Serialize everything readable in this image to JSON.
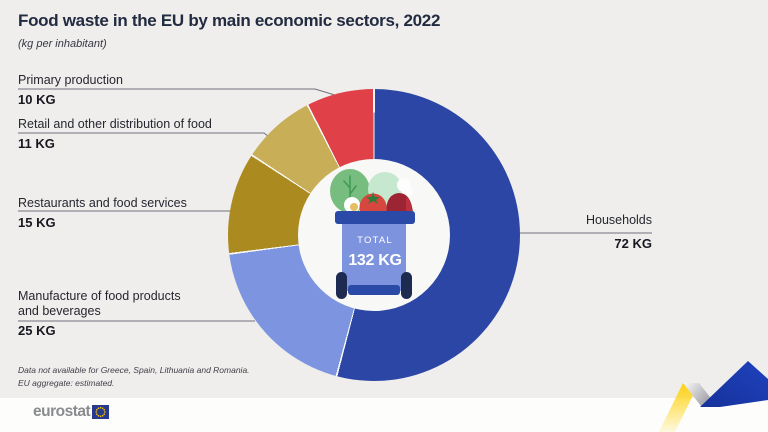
{
  "title": "Food waste in the EU by main economic sectors, 2022",
  "subtitle": "(kg per inhabitant)",
  "chart_data": {
    "type": "pie",
    "subtype": "donut",
    "title": "Food waste in the EU by main economic sectors, 2022",
    "unit": "kg per inhabitant",
    "start_angle_deg": 0,
    "direction": "clockwise",
    "separator_color": "#f7f7f5",
    "hole_color": "#f8f8f6",
    "center_label": "TOTAL",
    "center_value": "132 KG",
    "segments": [
      {
        "label": "Households",
        "value": 72,
        "value_label": "72 KG",
        "color": "#2b46a4"
      },
      {
        "label": "Manufacture of food products\nand beverages",
        "value": 25,
        "value_label": "25 KG",
        "color": "#7d95e0"
      },
      {
        "label": "Restaurants and food services",
        "value": 15,
        "value_label": "15 KG",
        "color": "#ab8a1f"
      },
      {
        "label": "Retail and other distribution of food",
        "value": 11,
        "value_label": "11 KG",
        "color": "#c9ae58"
      },
      {
        "label": "Primary production",
        "value": 10,
        "value_label": "10 KG",
        "color": "#e04048"
      }
    ]
  },
  "notes": [
    "Data not available for Greece, Spain, Lithuania and Romania.",
    "EU aggregate: estimated."
  ],
  "footer": {
    "brand": "eurostat",
    "flag_blue": "#283a8e",
    "star_color": "#ffcc00"
  },
  "colors": {
    "background": "#efeeec",
    "bottom_bar": "#fdfdfc",
    "title_text": "#222b40",
    "leader_line": "#70707a",
    "ribbon_yellow": "#ffd30f",
    "ribbon_blue": "#1f41bd"
  }
}
